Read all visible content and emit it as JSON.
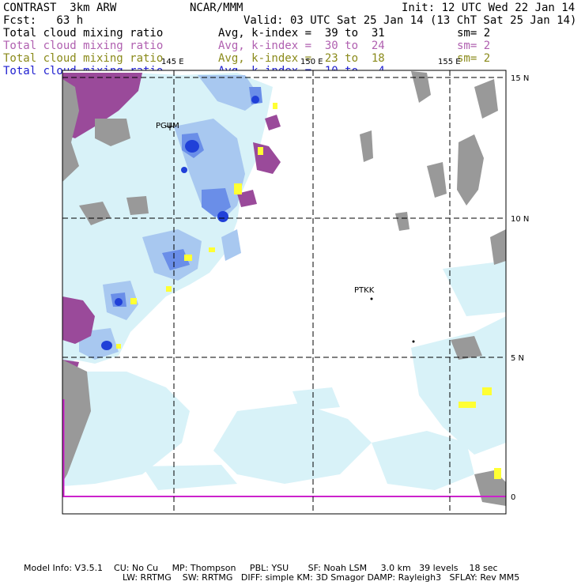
{
  "header": {
    "model": "CONTRAST  3km ARW",
    "org": "NCAR/MMM",
    "init": "Init: 12 UTC Wed 22 Jan 14",
    "fcst": "Fcst:   63 h",
    "valid": "Valid: 03 UTC Sat 25 Jan 14 (13 ChT Sat 25 Jan 14)"
  },
  "fields": [
    {
      "name": "Total cloud mixing ratio",
      "avg": "Avg, k-index =  39 to  31",
      "sm": "sm= 2",
      "color": "#000000"
    },
    {
      "name": "Total cloud mixing ratio",
      "avg": "Avg, k-index =  30 to  24",
      "sm": "sm= 2",
      "color": "#b060b0"
    },
    {
      "name": "Total cloud mixing ratio",
      "avg": "Avg, k-index =  23 to  18",
      "sm": "sm= 2",
      "color": "#8a8a1a"
    },
    {
      "name": "Total cloud mixing ratio",
      "avg": "Avg, k-index =  10 to   4",
      "sm": "",
      "color": "#2020d0"
    }
  ],
  "map": {
    "lon_labels": [
      "145 E",
      "150 E",
      "155 E"
    ],
    "lat_labels": [
      "15 N",
      "10 N",
      "5 N",
      "0"
    ],
    "stations": [
      "PGUM",
      "PTKK"
    ],
    "colors": {
      "ocean_background": "#ffffff",
      "cloud_light": "#d8f2f8",
      "cloud_medium": "#a8c8f0",
      "cloud_dark": "#6a8ee8",
      "cloud_core": "#2040d8",
      "high_cloud_purple": "#9a4a9a",
      "terrain_gray": "#999999",
      "highlight_yellow": "#ffff33",
      "equator_magenta": "#cc22cc"
    }
  },
  "footer": {
    "line1": "Model Info: V3.5.1    CU: No Cu     MP: Thompson     PBL: YSU       SF: Noah LSM     3.0 km   39 levels    18 sec",
    "line2": "LW: RRTMG    SW: RRTMG   DIFF: simple KM: 3D Smagor DAMP: Rayleigh3   SFLAY: Rev MM5"
  }
}
